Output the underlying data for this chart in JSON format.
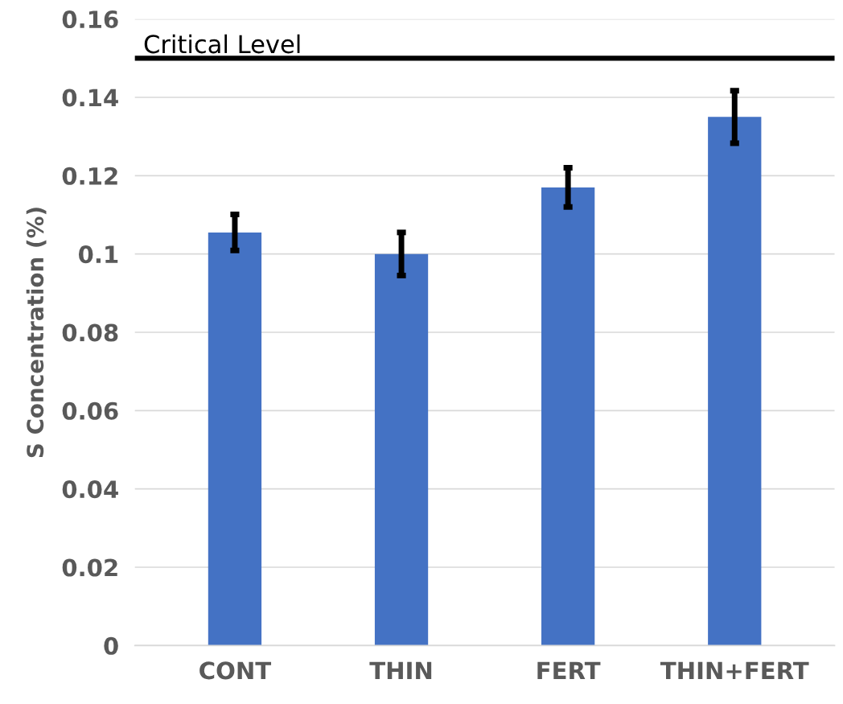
{
  "chart_data": {
    "type": "bar",
    "ylabel": "S Concentration (%)",
    "categories": [
      "CONT",
      "THIN",
      "FERT",
      "THIN+FERT"
    ],
    "values": [
      0.1055,
      0.1,
      0.117,
      0.135
    ],
    "errors": [
      0.0046,
      0.0055,
      0.005,
      0.0067
    ],
    "color": "#4472c4",
    "ylim": [
      0,
      0.16
    ],
    "yticks": [
      0,
      0.02,
      0.04,
      0.06,
      0.08,
      0.1,
      0.12,
      0.14,
      0.16
    ],
    "grid": "y",
    "ref_lines": [
      {
        "axis": "y",
        "value": 0.15,
        "label": "Critical Level",
        "color": "#000000"
      }
    ]
  }
}
